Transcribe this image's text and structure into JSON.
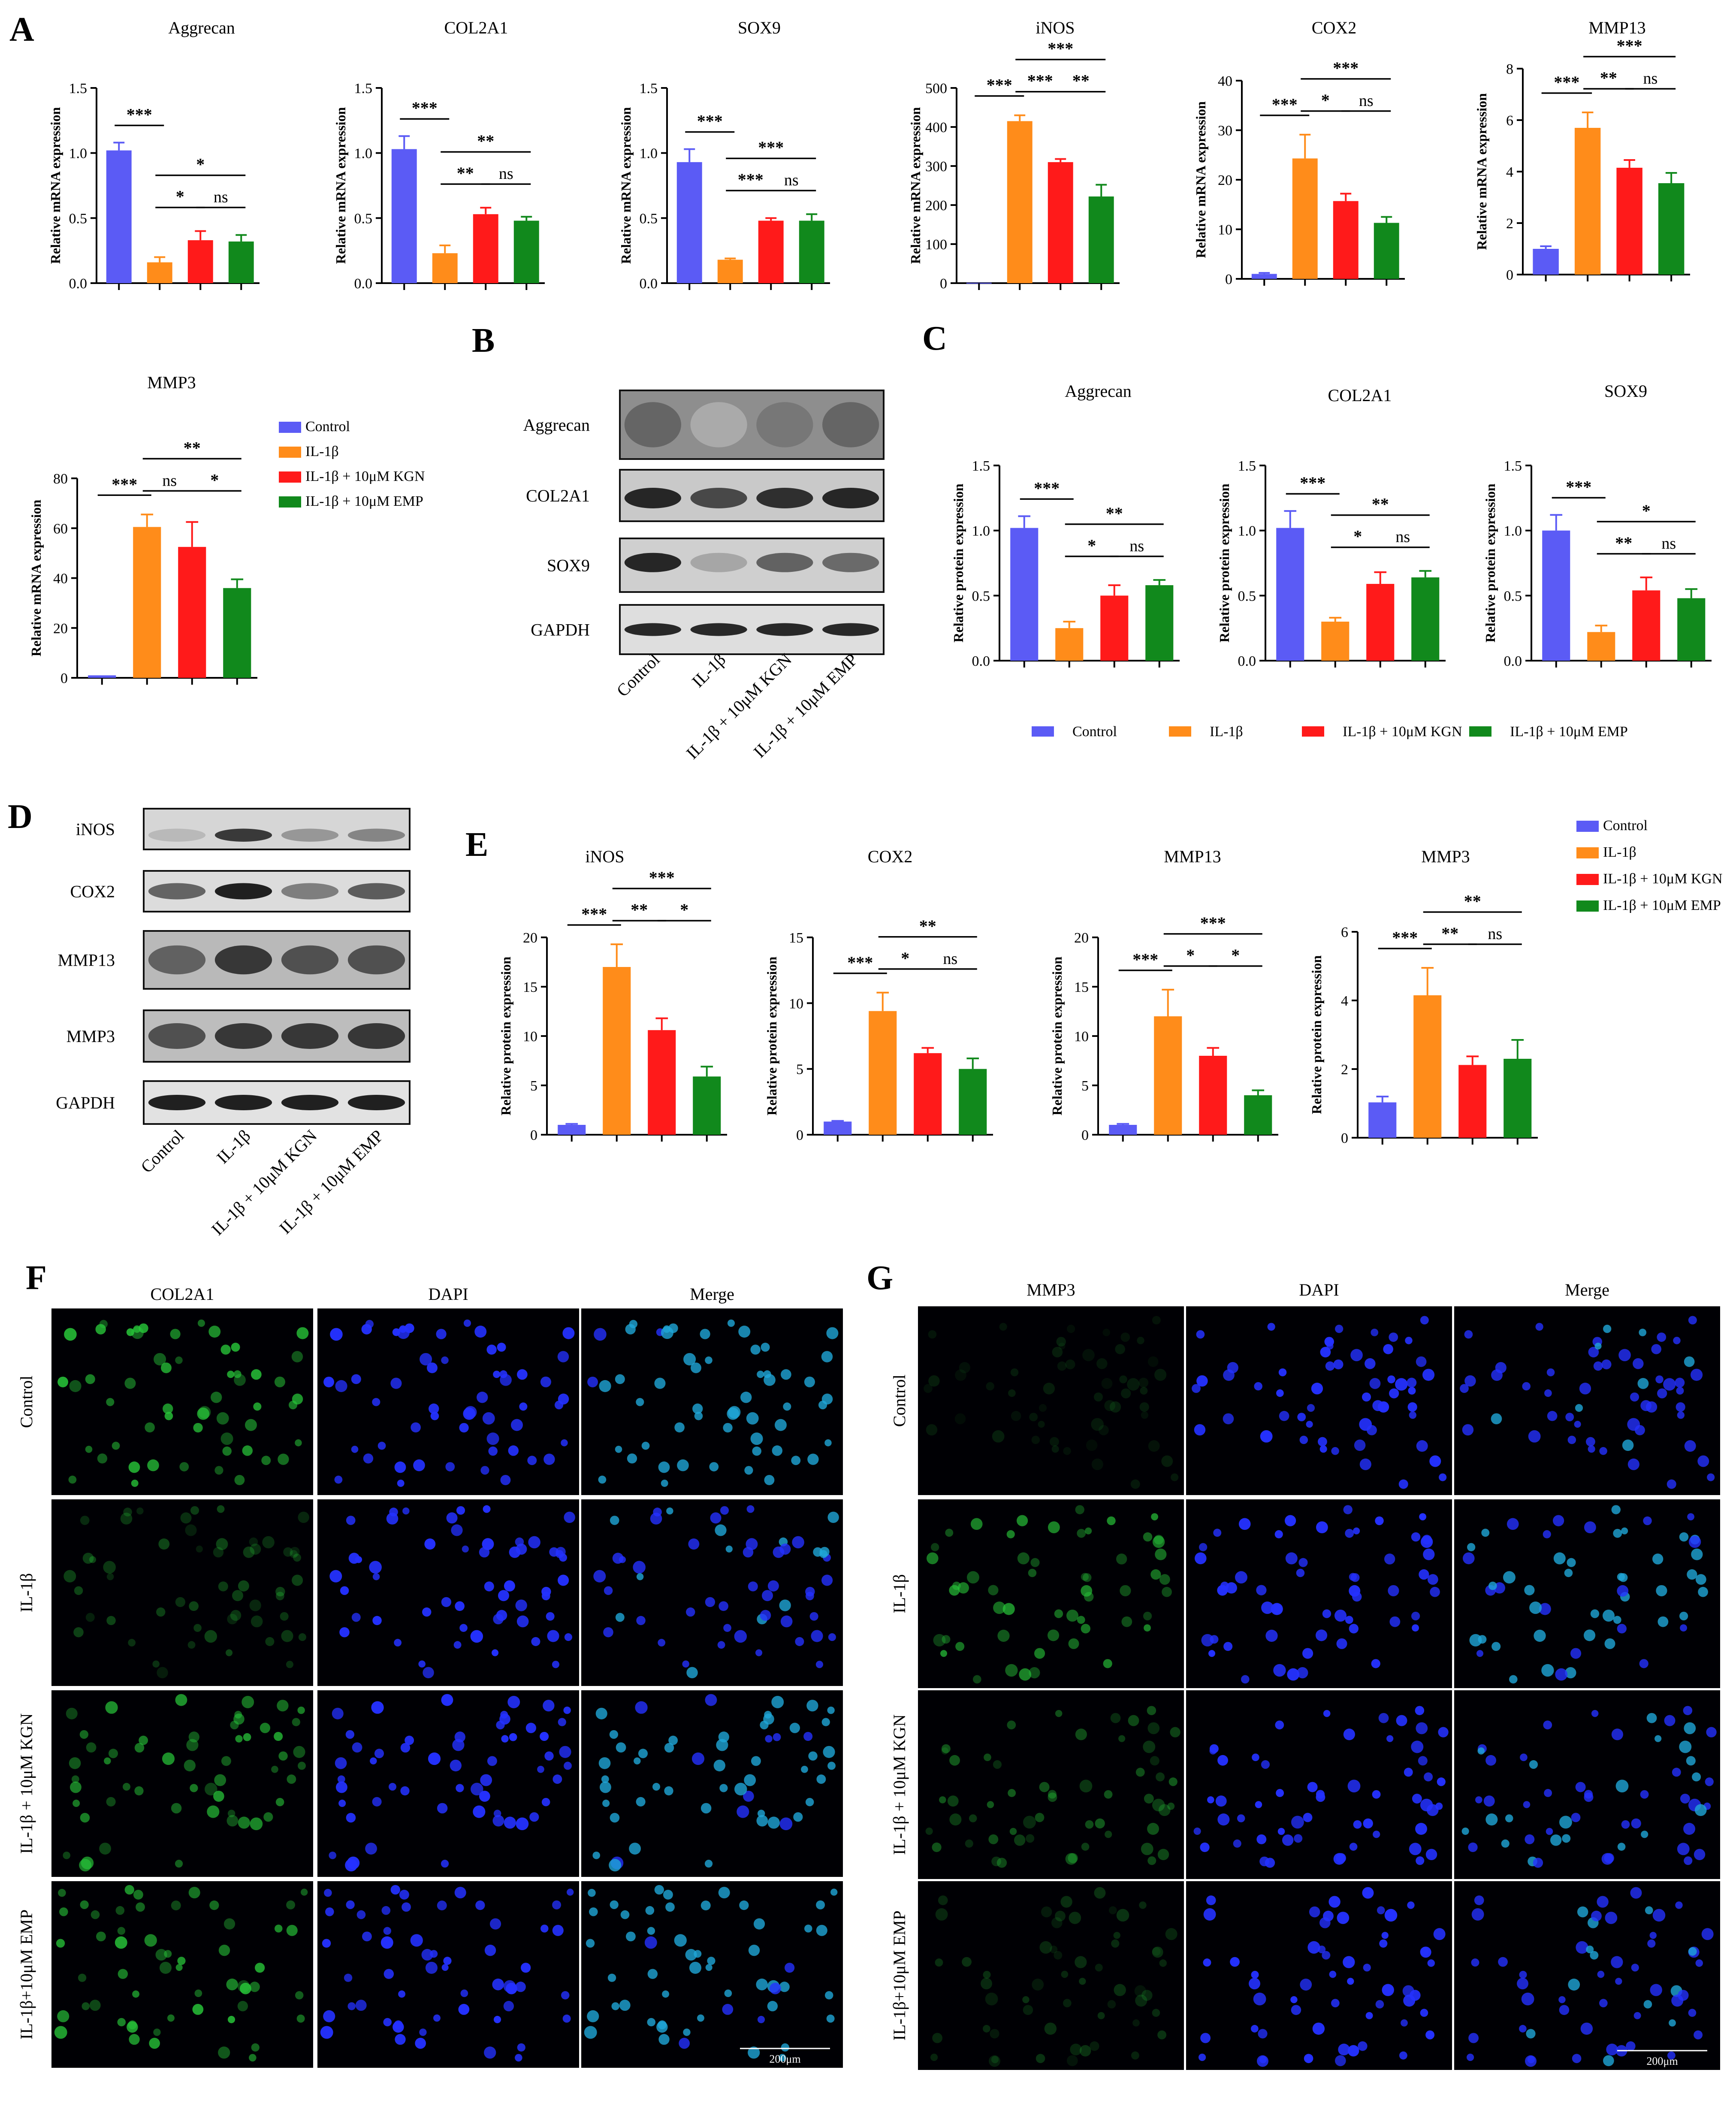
{
  "colors": {
    "control": "#5B5BF5",
    "il1b": "#FF8C1A",
    "kgn": "#FF1A1A",
    "emp": "#11891C"
  },
  "panel_labels": {
    "A": "A",
    "B": "B",
    "C": "C",
    "D": "D",
    "E": "E",
    "F": "F",
    "G": "G"
  },
  "legend": [
    "Control",
    "IL-1β",
    "IL-1β + 10μM KGN",
    "IL-1β + 10μM EMP"
  ],
  "chart_data": [
    {
      "type": "bar",
      "panel": "A",
      "title": "Aggrecan",
      "ylabel": "Relative mRNA expression",
      "ylim": [
        0,
        1.5
      ],
      "yticks": [
        "0.0",
        "0.5",
        "1.0",
        "1.5"
      ],
      "values": [
        1.02,
        0.16,
        0.33,
        0.32
      ],
      "errors": [
        0.06,
        0.04,
        0.07,
        0.05
      ],
      "significance": [
        {
          "from": 0,
          "to": 1,
          "label": "***"
        },
        {
          "from": 1,
          "to": 2,
          "label": "*"
        },
        {
          "from": 2,
          "to": 3,
          "label": "ns"
        },
        {
          "from": 1,
          "to": 3,
          "label": "*"
        }
      ]
    },
    {
      "type": "bar",
      "panel": "A",
      "title": "COL2A1",
      "ylabel": "Relative mRNA expression",
      "ylim": [
        0,
        1.5
      ],
      "yticks": [
        "0.0",
        "0.5",
        "1.0",
        "1.5"
      ],
      "values": [
        1.03,
        0.23,
        0.53,
        0.48
      ],
      "errors": [
        0.1,
        0.06,
        0.05,
        0.03
      ],
      "significance": [
        {
          "from": 0,
          "to": 1,
          "label": "***"
        },
        {
          "from": 1,
          "to": 2,
          "label": "**"
        },
        {
          "from": 2,
          "to": 3,
          "label": "ns"
        },
        {
          "from": 1,
          "to": 3,
          "label": "**"
        }
      ]
    },
    {
      "type": "bar",
      "panel": "A",
      "title": "SOX9",
      "ylabel": "Relative mRNA expression",
      "ylim": [
        0,
        1.5
      ],
      "yticks": [
        "0.0",
        "0.5",
        "1.0",
        "1.5"
      ],
      "values": [
        0.93,
        0.18,
        0.48,
        0.48
      ],
      "errors": [
        0.1,
        0.01,
        0.02,
        0.05
      ],
      "significance": [
        {
          "from": 0,
          "to": 1,
          "label": "***"
        },
        {
          "from": 1,
          "to": 2,
          "label": "***"
        },
        {
          "from": 2,
          "to": 3,
          "label": "ns"
        },
        {
          "from": 1,
          "to": 3,
          "label": "***"
        }
      ]
    },
    {
      "type": "bar",
      "panel": "A",
      "title": "iNOS",
      "ylabel": "Relative mRNA expression",
      "ylim": [
        0,
        500
      ],
      "yticks": [
        "0",
        "100",
        "200",
        "300",
        "400",
        "500"
      ],
      "values": [
        1,
        415,
        310,
        222
      ],
      "errors": [
        0,
        15,
        8,
        30
      ],
      "significance": [
        {
          "from": 0,
          "to": 1,
          "label": "***"
        },
        {
          "from": 1,
          "to": 2,
          "label": "***"
        },
        {
          "from": 2,
          "to": 3,
          "label": "**"
        },
        {
          "from": 1,
          "to": 3,
          "label": "***"
        }
      ]
    },
    {
      "type": "bar",
      "panel": "A",
      "title": "COX2",
      "ylabel": "Relative mRNA expression",
      "ylim": [
        0,
        40
      ],
      "yticks": [
        "0",
        "10",
        "20",
        "30",
        "40"
      ],
      "values": [
        1,
        24.3,
        15.7,
        11.3
      ],
      "errors": [
        0.2,
        4.8,
        1.5,
        1.2
      ],
      "significance": [
        {
          "from": 0,
          "to": 1,
          "label": "***"
        },
        {
          "from": 1,
          "to": 2,
          "label": "*"
        },
        {
          "from": 2,
          "to": 3,
          "label": "ns"
        },
        {
          "from": 1,
          "to": 3,
          "label": "***"
        }
      ]
    },
    {
      "type": "bar",
      "panel": "A",
      "title": "MMP13",
      "ylabel": "Relative mRNA expression",
      "ylim": [
        0,
        8
      ],
      "yticks": [
        "0",
        "2",
        "4",
        "6",
        "8"
      ],
      "values": [
        1,
        5.7,
        4.15,
        3.55
      ],
      "errors": [
        0.1,
        0.6,
        0.3,
        0.4
      ],
      "significance": [
        {
          "from": 0,
          "to": 1,
          "label": "***"
        },
        {
          "from": 1,
          "to": 2,
          "label": "**"
        },
        {
          "from": 2,
          "to": 3,
          "label": "ns"
        },
        {
          "from": 1,
          "to": 3,
          "label": "***"
        }
      ]
    },
    {
      "type": "bar",
      "panel": "A",
      "title": "MMP3",
      "ylabel": "Relative mRNA expression",
      "ylim": [
        0,
        80
      ],
      "yticks": [
        "0",
        "20",
        "40",
        "60",
        "80"
      ],
      "values": [
        1,
        60.5,
        52.5,
        36
      ],
      "errors": [
        0,
        5,
        10,
        3.5
      ],
      "significance": [
        {
          "from": 0,
          "to": 1,
          "label": "***"
        },
        {
          "from": 1,
          "to": 2,
          "label": "ns"
        },
        {
          "from": 2,
          "to": 3,
          "label": "*"
        },
        {
          "from": 1,
          "to": 3,
          "label": "**"
        }
      ]
    },
    {
      "type": "bar",
      "panel": "C",
      "title": "Aggrecan",
      "ylabel": "Relative protein expression",
      "ylim": [
        0,
        1.5
      ],
      "yticks": [
        "0.0",
        "0.5",
        "1.0",
        "1.5"
      ],
      "values": [
        1.02,
        0.25,
        0.5,
        0.58
      ],
      "errors": [
        0.09,
        0.05,
        0.08,
        0.04
      ],
      "significance": [
        {
          "from": 0,
          "to": 1,
          "label": "***"
        },
        {
          "from": 1,
          "to": 2,
          "label": "*"
        },
        {
          "from": 2,
          "to": 3,
          "label": "ns"
        },
        {
          "from": 1,
          "to": 3,
          "label": "**"
        }
      ]
    },
    {
      "type": "bar",
      "panel": "C",
      "title": "COL2A1",
      "ylabel": "Relative protein expression",
      "ylim": [
        0,
        1.5
      ],
      "yticks": [
        "0.0",
        "0.5",
        "1.0",
        "1.5"
      ],
      "values": [
        1.02,
        0.3,
        0.59,
        0.64
      ],
      "errors": [
        0.13,
        0.03,
        0.09,
        0.05
      ],
      "significance": [
        {
          "from": 0,
          "to": 1,
          "label": "***"
        },
        {
          "from": 1,
          "to": 2,
          "label": "*"
        },
        {
          "from": 2,
          "to": 3,
          "label": "ns"
        },
        {
          "from": 1,
          "to": 3,
          "label": "**"
        }
      ]
    },
    {
      "type": "bar",
      "panel": "C",
      "title": "SOX9",
      "ylabel": "Relative protein expression",
      "ylim": [
        0,
        1.5
      ],
      "yticks": [
        "0.0",
        "0.5",
        "1.0",
        "1.5"
      ],
      "values": [
        1.0,
        0.22,
        0.54,
        0.48
      ],
      "errors": [
        0.12,
        0.05,
        0.1,
        0.07
      ],
      "significance": [
        {
          "from": 0,
          "to": 1,
          "label": "***"
        },
        {
          "from": 1,
          "to": 2,
          "label": "**"
        },
        {
          "from": 2,
          "to": 3,
          "label": "ns"
        },
        {
          "from": 1,
          "to": 3,
          "label": "*"
        }
      ]
    },
    {
      "type": "bar",
      "panel": "E",
      "title": "iNOS",
      "ylabel": "Relative protein expression",
      "ylim": [
        0,
        20
      ],
      "yticks": [
        "0",
        "5",
        "10",
        "15",
        "20"
      ],
      "values": [
        1,
        17,
        10.6,
        5.9
      ],
      "errors": [
        0.1,
        2.3,
        1.2,
        1.0
      ],
      "significance": [
        {
          "from": 0,
          "to": 1,
          "label": "***"
        },
        {
          "from": 1,
          "to": 2,
          "label": "**"
        },
        {
          "from": 2,
          "to": 3,
          "label": "*"
        },
        {
          "from": 1,
          "to": 3,
          "label": "***"
        }
      ]
    },
    {
      "type": "bar",
      "panel": "E",
      "title": "COX2",
      "ylabel": "Relative protein expression",
      "ylim": [
        0,
        15
      ],
      "yticks": [
        "0",
        "5",
        "10",
        "15"
      ],
      "values": [
        1,
        9.4,
        6.2,
        5.0
      ],
      "errors": [
        0.05,
        1.4,
        0.4,
        0.8
      ],
      "significance": [
        {
          "from": 0,
          "to": 1,
          "label": "***"
        },
        {
          "from": 1,
          "to": 2,
          "label": "*"
        },
        {
          "from": 2,
          "to": 3,
          "label": "ns"
        },
        {
          "from": 1,
          "to": 3,
          "label": "**"
        }
      ]
    },
    {
      "type": "bar",
      "panel": "E",
      "title": "MMP13",
      "ylabel": "Relative protein expression",
      "ylim": [
        0,
        20
      ],
      "yticks": [
        "0",
        "5",
        "10",
        "15",
        "20"
      ],
      "values": [
        1,
        12,
        8,
        4
      ],
      "errors": [
        0.1,
        2.7,
        0.8,
        0.5
      ],
      "significance": [
        {
          "from": 0,
          "to": 1,
          "label": "***"
        },
        {
          "from": 1,
          "to": 2,
          "label": "*"
        },
        {
          "from": 2,
          "to": 3,
          "label": "*"
        },
        {
          "from": 1,
          "to": 3,
          "label": "***"
        }
      ]
    },
    {
      "type": "bar",
      "panel": "E",
      "title": "MMP3",
      "ylabel": "Relative protein expression",
      "ylim": [
        0,
        6
      ],
      "yticks": [
        "0",
        "2",
        "4",
        "6"
      ],
      "values": [
        1.03,
        4.15,
        2.12,
        2.3
      ],
      "errors": [
        0.17,
        0.8,
        0.25,
        0.55
      ],
      "significance": [
        {
          "from": 0,
          "to": 1,
          "label": "***"
        },
        {
          "from": 1,
          "to": 2,
          "label": "**"
        },
        {
          "from": 2,
          "to": 3,
          "label": "ns"
        },
        {
          "from": 1,
          "to": 3,
          "label": "**"
        }
      ]
    }
  ],
  "blot_B": {
    "rows": [
      "Aggrecan",
      "COL2A1",
      "SOX9",
      "GAPDH"
    ],
    "lanes": [
      "Control",
      "IL-1β",
      "IL-1β + 10μM KGN",
      "IL-1β + 10μM EMP"
    ]
  },
  "blot_D": {
    "rows": [
      "iNOS",
      "COX2",
      "MMP13",
      "MMP3",
      "GAPDH"
    ],
    "lanes": [
      "Control",
      "IL-1β",
      "IL-1β + 10μM KGN",
      "IL-1β + 10μM EMP"
    ]
  },
  "panel_F": {
    "columns": [
      "COL2A1",
      "DAPI",
      "Merge"
    ],
    "rows": [
      "Control",
      "IL-1β",
      "IL-1β + 10μM KGN",
      "IL-1β+10μM EMP"
    ],
    "scale": "200μm"
  },
  "panel_G": {
    "columns": [
      "MMP3",
      "DAPI",
      "Merge"
    ],
    "rows": [
      "Control",
      "IL-1β",
      "IL-1β + 10μM KGN",
      "IL-1β+10μM EMP"
    ],
    "scale": "200μm"
  }
}
